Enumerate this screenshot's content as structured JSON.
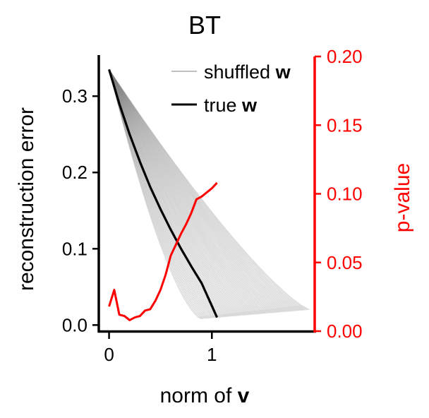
{
  "chart_data": {
    "type": "line",
    "title": "BT",
    "xlabel": {
      "prefix": "norm of ",
      "bold": "v"
    },
    "ylabel": "reconstruction error",
    "ylabel_right": "p-value",
    "xlim": [
      -0.1,
      2.0
    ],
    "ylim": [
      -0.008,
      0.352
    ],
    "ylim_right": [
      0.0,
      0.2
    ],
    "x_ticks": [
      0,
      1
    ],
    "x_tick_labels": [
      "0",
      "1"
    ],
    "y_ticks": [
      0.0,
      0.1,
      0.2,
      0.3
    ],
    "y_tick_labels": [
      "0.0",
      "0.1",
      "0.2",
      "0.3"
    ],
    "y_right_ticks": [
      0.0,
      0.05,
      0.1,
      0.15,
      0.2
    ],
    "y_right_tick_labels": [
      "0.00",
      "0.05",
      "0.10",
      "0.15",
      "0.20"
    ],
    "grid": false,
    "legend_placement": "top-right",
    "legend": [
      {
        "prefix": "shuffled ",
        "bold": "w",
        "style": "thin-gray"
      },
      {
        "prefix": "true ",
        "bold": "w",
        "style": "thick-black"
      }
    ],
    "colors": {
      "shuffled": "#808080",
      "true": "#000000",
      "pvalue": "#ff0000",
      "axes": "#000000"
    },
    "true_w": {
      "x": [
        0.0,
        0.1,
        0.2,
        0.3,
        0.4,
        0.5,
        0.6,
        0.7,
        0.8,
        0.9,
        1.0,
        1.05
      ],
      "y": [
        0.335,
        0.29,
        0.25,
        0.214,
        0.181,
        0.152,
        0.125,
        0.1,
        0.077,
        0.055,
        0.025,
        0.01
      ]
    },
    "shuffled_w": {
      "start": [
        0.0,
        0.335
      ],
      "end_x_range": [
        0.9,
        1.95
      ],
      "end_y_range": [
        0.008,
        0.02
      ],
      "count": 70
    },
    "p_value": {
      "axis": "right",
      "x": [
        0.0,
        0.05,
        0.1,
        0.15,
        0.2,
        0.25,
        0.3,
        0.35,
        0.4,
        0.45,
        0.5,
        0.55,
        0.6,
        0.65,
        0.7,
        0.75,
        0.8,
        0.85,
        0.9,
        0.95,
        1.0,
        1.05
      ],
      "y": [
        0.018,
        0.03,
        0.012,
        0.011,
        0.008,
        0.01,
        0.011,
        0.015,
        0.016,
        0.022,
        0.03,
        0.041,
        0.055,
        0.063,
        0.071,
        0.078,
        0.086,
        0.096,
        0.098,
        0.101,
        0.104,
        0.108
      ]
    }
  }
}
